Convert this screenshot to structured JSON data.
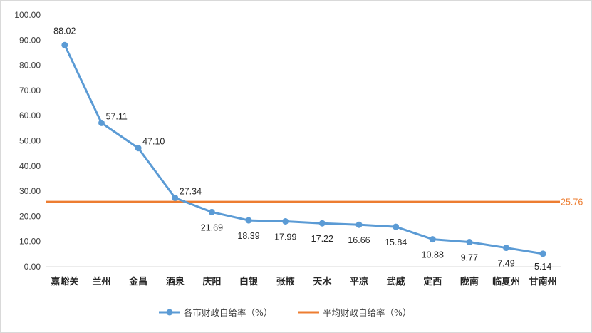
{
  "chart_data": {
    "type": "line",
    "title": "",
    "xlabel": "",
    "ylabel": "",
    "ylim": [
      0,
      100
    ],
    "yticks": [
      "0.00",
      "10.00",
      "20.00",
      "30.00",
      "40.00",
      "50.00",
      "60.00",
      "70.00",
      "80.00",
      "90.00",
      "100.00"
    ],
    "categories": [
      "嘉峪关",
      "兰州",
      "金昌",
      "酒泉",
      "庆阳",
      "白银",
      "张掖",
      "天水",
      "平凉",
      "武威",
      "定西",
      "陇南",
      "临夏州",
      "甘南州"
    ],
    "series": [
      {
        "name": "各市财政自给率（%）",
        "color": "#5B9BD5",
        "values": [
          88.02,
          57.11,
          47.1,
          27.34,
          21.69,
          18.39,
          17.99,
          17.22,
          16.66,
          15.84,
          10.88,
          9.77,
          7.49,
          5.14
        ],
        "labels": [
          "88.02",
          "57.11",
          "47.10",
          "27.34",
          "21.69",
          "18.39",
          "17.99",
          "17.22",
          "16.66",
          "15.84",
          "10.88",
          "9.77",
          "7.49",
          "5.14"
        ]
      },
      {
        "name": "平均财政自给率（%）",
        "color": "#ED7D31",
        "value": 25.76,
        "label": "25.76"
      }
    ],
    "grid": false,
    "legend_position": "bottom"
  }
}
